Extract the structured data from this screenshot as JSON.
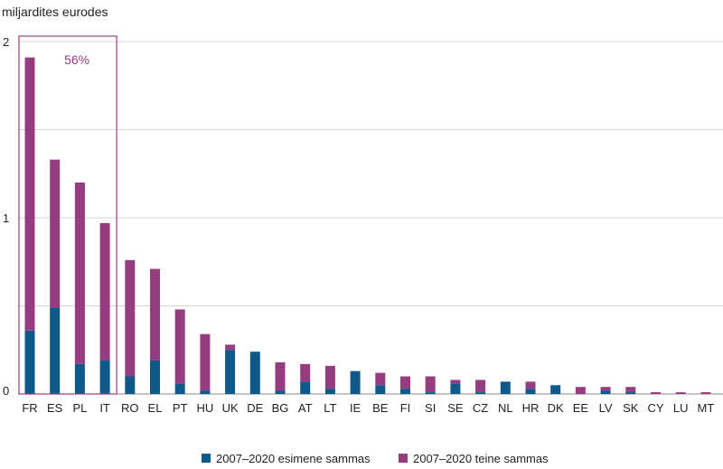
{
  "chart_data": {
    "type": "bar",
    "stacked": true,
    "ylabel": "miljardites eurodes",
    "ylim": [
      0,
      2
    ],
    "yticks": [
      "0",
      "1",
      "2"
    ],
    "grid": true,
    "legend_position": "bottom",
    "categories": [
      "FR",
      "ES",
      "PL",
      "IT",
      "RO",
      "EL",
      "PT",
      "HU",
      "UK",
      "DE",
      "BG",
      "AT",
      "LT",
      "IE",
      "BE",
      "FI",
      "SI",
      "SE",
      "CZ",
      "NL",
      "HR",
      "DK",
      "EE",
      "LV",
      "SK",
      "CY",
      "LU",
      "MT"
    ],
    "series": [
      {
        "name": "2007–2020 esimene sammas",
        "color": "#0d5a8a",
        "values": [
          0.36,
          0.49,
          0.17,
          0.19,
          0.1,
          0.19,
          0.06,
          0.02,
          0.25,
          0.24,
          0.02,
          0.07,
          0.03,
          0.13,
          0.05,
          0.03,
          0.01,
          0.06,
          0.01,
          0.07,
          0.03,
          0.05,
          0.0,
          0.02,
          0.01,
          0.0,
          0.0,
          0.0
        ]
      },
      {
        "name": "2007–2020 teine sammas",
        "color": "#963c80",
        "values": [
          1.55,
          0.84,
          1.03,
          0.78,
          0.66,
          0.52,
          0.42,
          0.32,
          0.03,
          0.0,
          0.16,
          0.1,
          0.13,
          0.0,
          0.07,
          0.07,
          0.09,
          0.02,
          0.07,
          0.0,
          0.04,
          0.0,
          0.04,
          0.02,
          0.03,
          0.01,
          0.01,
          0.01
        ]
      }
    ],
    "annotations": [
      {
        "text": "56%",
        "color": "#963c80",
        "spans_categories": [
          "FR",
          "ES",
          "PL",
          "IT"
        ]
      }
    ]
  }
}
